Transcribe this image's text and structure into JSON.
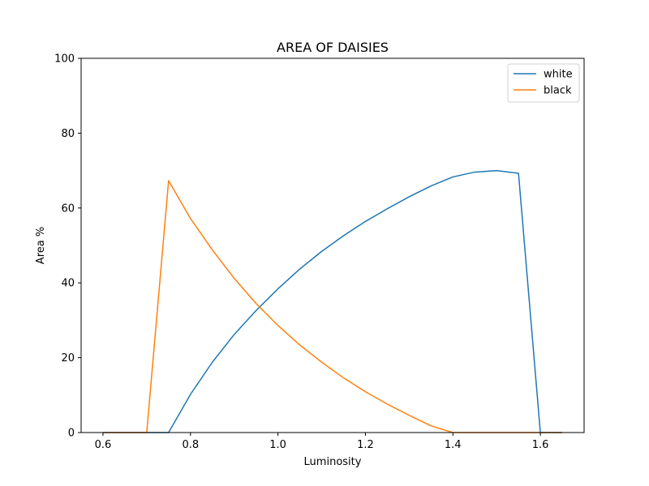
{
  "chart_data": {
    "type": "line",
    "title": "AREA OF DAISIES",
    "xlabel": "Luminosity",
    "ylabel": "Area %",
    "xlim": [
      0.55,
      1.7
    ],
    "ylim": [
      0,
      100
    ],
    "xticks": [
      "0.6",
      "0.8",
      "1.0",
      "1.2",
      "1.4",
      "1.6"
    ],
    "xtick_values": [
      0.6,
      0.8,
      1.0,
      1.2,
      1.4,
      1.6
    ],
    "yticks": [
      "0",
      "20",
      "40",
      "60",
      "80",
      "100"
    ],
    "ytick_values": [
      0,
      20,
      40,
      60,
      80,
      100
    ],
    "grid": false,
    "legend_position": "top-right",
    "x": [
      0.6,
      0.65,
      0.7,
      0.75,
      0.8,
      0.85,
      0.9,
      0.95,
      1.0,
      1.05,
      1.1,
      1.15,
      1.2,
      1.25,
      1.3,
      1.35,
      1.4,
      1.45,
      1.5,
      1.55,
      1.6,
      1.65
    ],
    "series": [
      {
        "name": "white",
        "color": "#1f77b4",
        "values": [
          0,
          0,
          0,
          0,
          10.2,
          18.8,
          26.2,
          32.6,
          38.4,
          43.7,
          48.4,
          52.6,
          56.4,
          59.8,
          63.0,
          65.9,
          68.3,
          69.6,
          70.0,
          69.3,
          0,
          0
        ]
      },
      {
        "name": "black",
        "color": "#ff7f0e",
        "values": [
          0,
          0,
          0,
          67.3,
          57.2,
          48.8,
          41.2,
          34.5,
          28.6,
          23.4,
          18.8,
          14.6,
          10.9,
          7.6,
          4.6,
          1.8,
          0,
          0,
          0,
          0,
          0,
          0
        ]
      }
    ]
  }
}
